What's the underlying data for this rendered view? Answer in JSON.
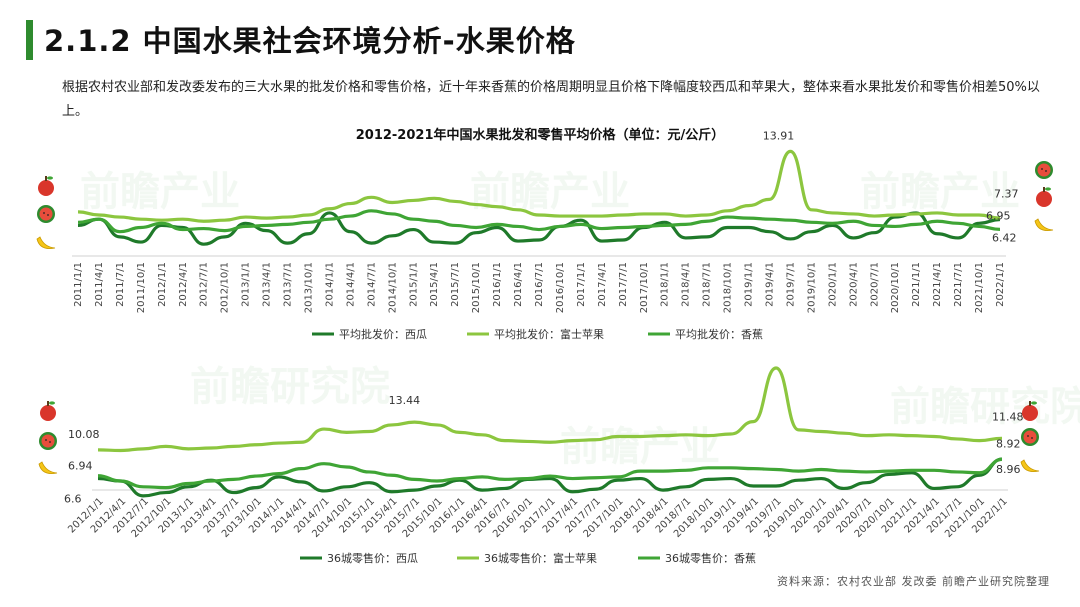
{
  "header": {
    "title": "2.1.2 中国水果社会环境分析-水果价格",
    "intro": "根据农村农业部和发改委发布的三大水果的批发价格和零售价格，近十年来香蕉的价格周期明显且价格下降幅度较西瓜和苹果大，整体来看水果批发价和零售价相差50%以上。",
    "source": "资料来源：农村农业部 发改委 前瞻产业研究院整理"
  },
  "colors": {
    "watermelon": "#1f7a2a",
    "apple": "#8cc63f",
    "banana": "#3fa535",
    "accent": "#2e8b2e"
  },
  "chart_data": [
    {
      "type": "line",
      "title": "2012-2021年中国水果批发和零售平均价格（单位：元/公斤）",
      "categories": [
        "2011/1/1",
        "2011/4/1",
        "2011/7/1",
        "2011/10/1",
        "2012/1/1",
        "2012/4/1",
        "2012/7/1",
        "2012/10/1",
        "2013/1/1",
        "2013/4/1",
        "2013/7/1",
        "2013/10/1",
        "2014/1/1",
        "2014/4/1",
        "2014/7/1",
        "2014/10/1",
        "2015/1/1",
        "2015/4/1",
        "2015/7/1",
        "2015/10/1",
        "2016/1/1",
        "2016/4/1",
        "2016/7/1",
        "2016/10/1",
        "2017/1/1",
        "2017/4/1",
        "2017/7/1",
        "2017/10/1",
        "2018/1/1",
        "2018/4/1",
        "2018/7/1",
        "2018/10/1",
        "2019/1/1",
        "2019/4/1",
        "2019/7/1",
        "2019/10/1",
        "2020/1/1",
        "2020/4/1",
        "2020/7/1",
        "2020/10/1",
        "2021/1/1",
        "2021/4/1",
        "2021/7/1",
        "2021/10/1",
        "2022/1/1"
      ],
      "ylim": [
        3,
        15
      ],
      "series": [
        {
          "name": "平均批发价：西瓜",
          "color": "#1f7a2a",
          "values": [
            6.8,
            7.4,
            5.7,
            5.2,
            6.8,
            6.6,
            5.0,
            5.7,
            7.0,
            6.3,
            5.1,
            6.0,
            8.0,
            6.2,
            5.1,
            5.8,
            6.4,
            5.2,
            5.1,
            6.1,
            6.6,
            5.3,
            5.4,
            6.7,
            7.3,
            5.3,
            5.4,
            6.6,
            7.1,
            5.6,
            5.7,
            6.6,
            6.6,
            6.2,
            5.5,
            6.2,
            6.8,
            5.6,
            6.1,
            7.6,
            8.0,
            6.0,
            5.6,
            7.0,
            7.37
          ]
        },
        {
          "name": "平均批发价：富士苹果",
          "color": "#8cc63f",
          "values": [
            8.1,
            7.8,
            7.6,
            7.4,
            7.3,
            7.4,
            7.2,
            7.3,
            7.6,
            7.5,
            7.6,
            7.8,
            8.4,
            8.9,
            9.5,
            9.0,
            9.2,
            9.4,
            9.1,
            8.8,
            8.6,
            8.3,
            7.8,
            7.7,
            7.7,
            7.7,
            7.8,
            7.9,
            7.9,
            7.7,
            7.8,
            8.2,
            8.7,
            9.3,
            13.91,
            8.3,
            8.0,
            7.9,
            7.7,
            7.8,
            7.9,
            8.0,
            7.8,
            7.8,
            7.5
          ]
        },
        {
          "name": "平均批发价：香蕉",
          "color": "#3fa535",
          "values": [
            7.1,
            7.4,
            6.2,
            6.6,
            7.0,
            6.4,
            6.5,
            6.3,
            6.7,
            6.8,
            6.9,
            7.1,
            7.4,
            7.7,
            8.2,
            7.9,
            7.4,
            7.2,
            6.8,
            6.6,
            6.9,
            6.7,
            6.4,
            6.7,
            6.9,
            6.5,
            6.6,
            6.7,
            6.8,
            6.9,
            7.2,
            7.6,
            7.5,
            7.4,
            7.3,
            7.1,
            7.0,
            7.2,
            6.8,
            6.7,
            6.9,
            7.2,
            7.0,
            6.7,
            6.42
          ]
        }
      ],
      "point_labels": [
        "13.91",
        "7.37",
        "6.95",
        "6.42"
      ],
      "legend": [
        "平均批发价：西瓜",
        "平均批发价：富士苹果",
        "平均批发价：香蕉"
      ]
    },
    {
      "type": "line",
      "categories": [
        "2012/1/1",
        "2012/4/1",
        "2012/7/1",
        "2012/10/1",
        "2013/1/1",
        "2013/4/1",
        "2013/7/1",
        "2013/10/1",
        "2014/1/1",
        "2014/4/1",
        "2014/7/1",
        "2014/10/1",
        "2015/1/1",
        "2015/4/1",
        "2015/7/1",
        "2015/10/1",
        "2016/1/1",
        "2016/4/1",
        "2016/7/1",
        "2016/10/1",
        "2017/1/1",
        "2017/4/1",
        "2017/7/1",
        "2017/10/1",
        "2018/1/1",
        "2018/4/1",
        "2018/7/1",
        "2018/10/1",
        "2019/1/1",
        "2019/4/1",
        "2019/7/1",
        "2019/10/1",
        "2020/1/1",
        "2020/4/1",
        "2020/7/1",
        "2020/10/1",
        "2021/1/1",
        "2021/4/1",
        "2021/7/1",
        "2021/10/1",
        "2022/1/1"
      ],
      "ylim": [
        4,
        20
      ],
      "series": [
        {
          "name": "36城零售价：西瓜",
          "color": "#1f7a2a",
          "values": [
            6.6,
            6.3,
            4.5,
            4.9,
            5.6,
            6.4,
            4.9,
            5.5,
            6.8,
            6.2,
            5.1,
            5.6,
            6.1,
            5.0,
            5.2,
            5.7,
            6.4,
            5.2,
            5.4,
            6.5,
            6.6,
            5.0,
            5.3,
            6.4,
            6.6,
            5.2,
            5.6,
            6.5,
            6.6,
            5.7,
            5.7,
            6.4,
            6.6,
            5.4,
            6.1,
            7.1,
            7.3,
            5.4,
            5.6,
            7.0,
            8.96
          ]
        },
        {
          "name": "36城零售价：富士苹果",
          "color": "#8cc63f",
          "values": [
            10.08,
            10.0,
            10.2,
            10.5,
            10.2,
            10.3,
            10.5,
            10.7,
            10.9,
            11.0,
            12.6,
            12.2,
            12.3,
            13.1,
            13.44,
            13.1,
            12.2,
            11.9,
            11.2,
            11.1,
            11.0,
            11.2,
            11.3,
            11.7,
            11.7,
            11.8,
            11.9,
            11.8,
            12.0,
            13.5,
            20.0,
            12.5,
            12.3,
            12.1,
            11.8,
            11.9,
            11.8,
            11.7,
            11.4,
            11.2,
            11.48
          ]
        },
        {
          "name": "36城零售价：香蕉",
          "color": "#3fa535",
          "values": [
            6.94,
            6.3,
            5.6,
            5.5,
            6.0,
            6.3,
            6.5,
            6.9,
            7.2,
            7.8,
            8.4,
            8.0,
            7.4,
            7.0,
            6.5,
            6.3,
            6.6,
            6.8,
            6.5,
            6.6,
            6.9,
            6.6,
            6.7,
            6.8,
            7.5,
            7.5,
            7.6,
            7.9,
            7.9,
            7.8,
            7.7,
            7.5,
            7.7,
            7.5,
            7.4,
            7.5,
            7.6,
            7.6,
            7.4,
            7.3,
            8.92
          ]
        }
      ],
      "point_labels": [
        "10.08",
        "6.94",
        "6.6",
        "13.44",
        "11.48",
        "8.92",
        "8.96"
      ],
      "legend": [
        "36城零售价：西瓜",
        "36城零售价：富士苹果",
        "36城零售价：香蕉"
      ]
    }
  ]
}
